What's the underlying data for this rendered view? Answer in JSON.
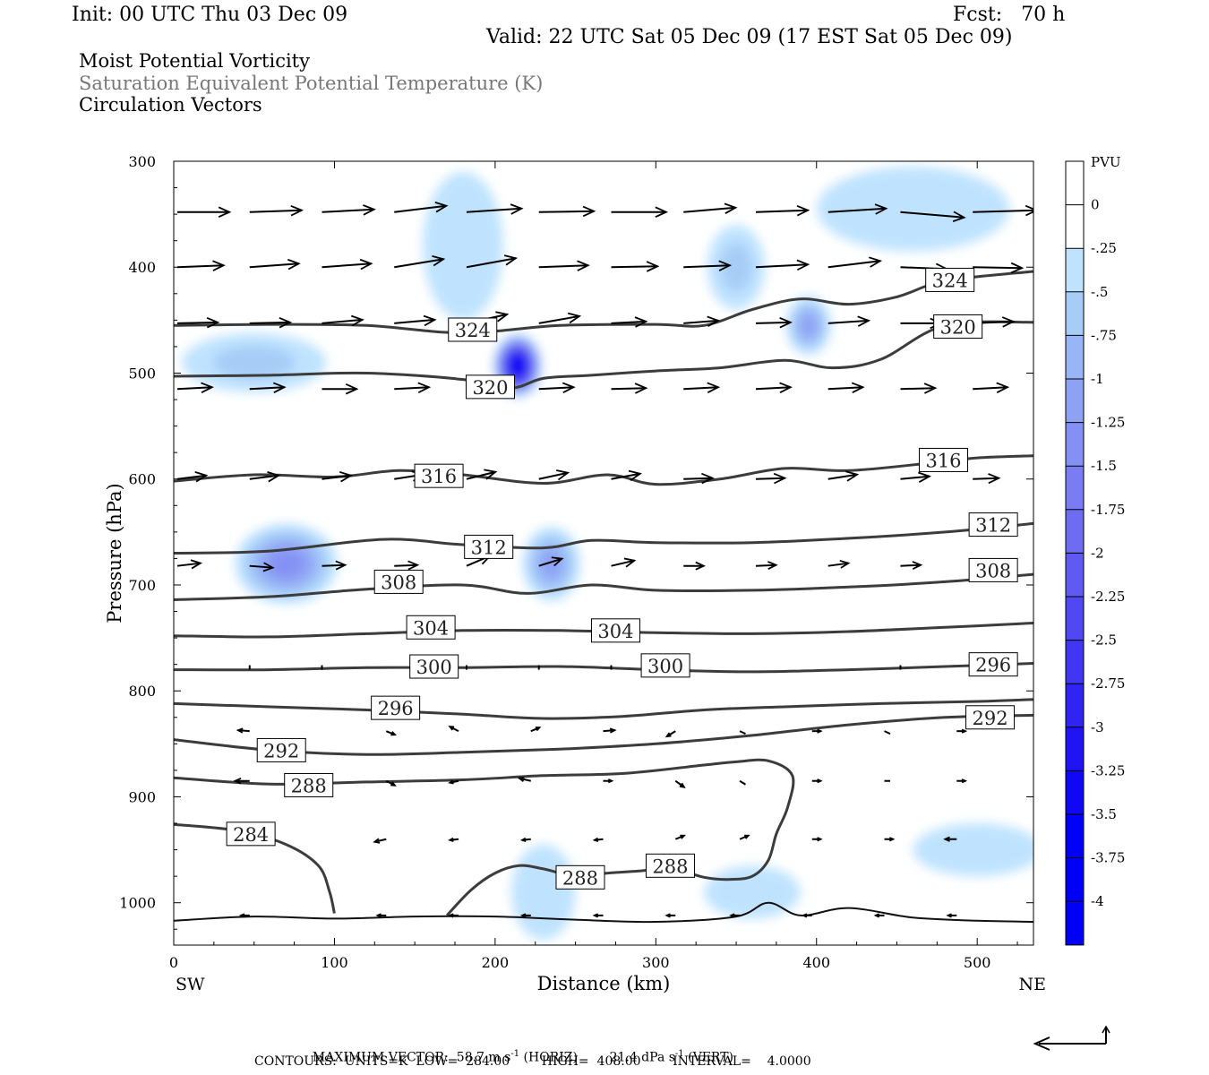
{
  "header": {
    "init": "Init: 00 UTC Thu 03 Dec 09",
    "fcst": "Fcst:   70 h",
    "valid": "Valid: 22 UTC Sat 05 Dec 09 (17 EST Sat 05 Dec 09)"
  },
  "titles": {
    "line1": "Moist Potential Vorticity",
    "line2": "Saturation Equivalent Potential Temperature (K)",
    "line3": "Circulation Vectors"
  },
  "colors": {
    "title2": "#777777",
    "contour": "#3c3c3c",
    "shade": [
      "#ffffff",
      "#ffffff",
      "#bfe3ff",
      "#a7cdf7",
      "#98b6f6",
      "#8ea2f4",
      "#8590f4",
      "#7a7cf3",
      "#6e6cf2",
      "#605af2",
      "#5148f2",
      "#4136f2",
      "#3024f3",
      "#2014f4",
      "#1008f5",
      "#0000f6",
      "#0000f8"
    ]
  },
  "footer": {
    "max_vector_label": "MAXIMUM VECTOR:",
    "horiz_value": "58.7 m s",
    "horiz_suffix": " (HORIZ)",
    "vert_value": "21.4 dPa s",
    "vert_suffix": " (VERT)",
    "exponent": "-1",
    "contours": "CONTOURS:  UNITS=K  LOW=  284.00        HIGH=  408.00        INTERVAL=    4.0000"
  },
  "chart_data": {
    "type": "contour",
    "xlabel": "Distance (km)",
    "ylabel": "Pressure (hPa)",
    "xlim": [
      0,
      535
    ],
    "ylim": [
      1040,
      300
    ],
    "xticks": [
      0,
      100,
      200,
      300,
      400,
      500
    ],
    "yticks": [
      300,
      400,
      500,
      600,
      700,
      800,
      900,
      1000
    ],
    "x_end_labels": {
      "left": "SW",
      "right": "NE"
    },
    "colorbar": {
      "label": "PVU",
      "ticks": [
        "0",
        "-.25",
        "-.5",
        "-.75",
        "-1",
        "-1.25",
        "-1.5",
        "-1.75",
        "-2",
        "-2.25",
        "-2.5",
        "-2.75",
        "-3",
        "-3.25",
        "-3.5",
        "-3.75",
        "-4"
      ]
    },
    "contour_lines": [
      {
        "value": 284,
        "x": [
          0,
          40,
          70,
          90,
          97,
          100
        ],
        "p": [
          926,
          932,
          945,
          965,
          990,
          1010
        ]
      },
      {
        "value": 288,
        "x": [
          0,
          60,
          120,
          180,
          230,
          280,
          330,
          350,
          370,
          385,
          382,
          375,
          370,
          360,
          345,
          330,
          310,
          290,
          270,
          250,
          230,
          215,
          200,
          185,
          170
        ],
        "p": [
          882,
          888,
          886,
          884,
          880,
          878,
          870,
          867,
          866,
          880,
          910,
          935,
          960,
          975,
          978,
          976,
          968,
          970,
          972,
          975,
          968,
          965,
          972,
          988,
          1012
        ]
      },
      {
        "value": 292,
        "x": [
          0,
          60,
          120,
          180,
          240,
          300,
          360,
          420,
          480,
          535
        ],
        "p": [
          846,
          856,
          860,
          858,
          855,
          850,
          842,
          832,
          825,
          823
        ]
      },
      {
        "value": 296,
        "x": [
          0,
          60,
          120,
          180,
          230,
          280,
          330,
          380,
          440,
          500,
          535
        ],
        "p": [
          812,
          815,
          818,
          822,
          826,
          824,
          818,
          815,
          812,
          810,
          808
        ]
      },
      {
        "value": 300,
        "x": [
          0,
          60,
          120,
          180,
          240,
          300,
          360,
          420,
          480,
          535
        ],
        "p": [
          780,
          780,
          778,
          778,
          777,
          780,
          782,
          780,
          777,
          774
        ]
      },
      {
        "value": 304,
        "x": [
          0,
          60,
          120,
          180,
          240,
          300,
          360,
          420,
          480,
          535
        ],
        "p": [
          748,
          749,
          746,
          743,
          743,
          745,
          746,
          744,
          740,
          736
        ]
      },
      {
        "value": 308,
        "x": [
          0,
          60,
          120,
          180,
          220,
          260,
          300,
          360,
          420,
          480,
          535
        ],
        "p": [
          714,
          711,
          704,
          700,
          708,
          700,
          705,
          705,
          702,
          697,
          690
        ]
      },
      {
        "value": 312,
        "x": [
          0,
          60,
          130,
          180,
          230,
          260,
          300,
          360,
          420,
          480,
          535
        ],
        "p": [
          670,
          668,
          657,
          662,
          665,
          658,
          660,
          660,
          656,
          650,
          642
        ]
      },
      {
        "value": 316,
        "x": [
          0,
          50,
          100,
          140,
          180,
          230,
          270,
          300,
          340,
          380,
          420,
          470,
          500,
          535
        ],
        "p": [
          602,
          596,
          598,
          592,
          596,
          604,
          596,
          605,
          600,
          590,
          592,
          585,
          580,
          578
        ]
      },
      {
        "value": 320,
        "x": [
          0,
          60,
          120,
          180,
          210,
          230,
          260,
          300,
          340,
          380,
          410,
          440,
          480,
          535
        ],
        "p": [
          503,
          502,
          500,
          506,
          514,
          505,
          502,
          498,
          495,
          488,
          495,
          487,
          455,
          452
        ]
      },
      {
        "value": 324,
        "x": [
          0,
          60,
          120,
          180,
          240,
          300,
          330,
          360,
          390,
          420,
          450,
          480,
          535
        ],
        "p": [
          455,
          454,
          455,
          462,
          455,
          454,
          455,
          440,
          430,
          435,
          428,
          413,
          404
        ]
      }
    ],
    "contour_labels": [
      {
        "text": "324",
        "x": 186,
        "p": 459
      },
      {
        "text": "320",
        "x": 197,
        "p": 513
      },
      {
        "text": "316",
        "x": 165,
        "p": 597
      },
      {
        "text": "312",
        "x": 196,
        "p": 664
      },
      {
        "text": "308",
        "x": 140,
        "p": 697
      },
      {
        "text": "304",
        "x": 160,
        "p": 740
      },
      {
        "text": "304",
        "x": 275,
        "p": 743
      },
      {
        "text": "300",
        "x": 162,
        "p": 777
      },
      {
        "text": "300",
        "x": 306,
        "p": 776
      },
      {
        "text": "296",
        "x": 138,
        "p": 816
      },
      {
        "text": "292",
        "x": 67,
        "p": 856
      },
      {
        "text": "288",
        "x": 84,
        "p": 889
      },
      {
        "text": "284",
        "x": 48,
        "p": 935
      },
      {
        "text": "288",
        "x": 253,
        "p": 976
      },
      {
        "text": "288",
        "x": 309,
        "p": 965
      },
      {
        "text": "324",
        "x": 483,
        "p": 412
      },
      {
        "text": "320",
        "x": 488,
        "p": 456
      },
      {
        "text": "316",
        "x": 479,
        "p": 582
      },
      {
        "text": "312",
        "x": 510,
        "p": 643
      },
      {
        "text": "308",
        "x": 510,
        "p": 686
      },
      {
        "text": "296",
        "x": 510,
        "p": 775
      },
      {
        "text": "292",
        "x": 508,
        "p": 825
      }
    ],
    "pv_regions": [
      {
        "x": 214,
        "p": 493,
        "rx": 15,
        "rp": 30,
        "level": 16
      },
      {
        "x": 50,
        "p": 490,
        "rx": 45,
        "rp": 28,
        "level": 3
      },
      {
        "x": 70,
        "p": 680,
        "rx": 32,
        "rp": 38,
        "level": 6
      },
      {
        "x": 235,
        "p": 680,
        "rx": 18,
        "rp": 35,
        "level": 5
      },
      {
        "x": 395,
        "p": 455,
        "rx": 14,
        "rp": 28,
        "level": 5
      },
      {
        "x": 350,
        "p": 400,
        "rx": 18,
        "rp": 40,
        "level": 3
      },
      {
        "x": 460,
        "p": 345,
        "rx": 60,
        "rp": 40,
        "level": 2
      },
      {
        "x": 500,
        "p": 950,
        "rx": 40,
        "rp": 25,
        "level": 2
      },
      {
        "x": 230,
        "p": 990,
        "rx": 20,
        "rp": 45,
        "level": 2
      },
      {
        "x": 360,
        "p": 990,
        "rx": 30,
        "rp": 25,
        "level": 2
      },
      {
        "x": 180,
        "p": 380,
        "rx": 25,
        "rp": 70,
        "level": 2
      }
    ],
    "vectors": [
      {
        "p": 348,
        "x": [
          0,
          45,
          90,
          135,
          180,
          225,
          270,
          315,
          360,
          405,
          450,
          495
        ],
        "u": [
          36,
          36,
          36,
          36,
          38,
          38,
          38,
          36,
          36,
          40,
          44,
          44
        ],
        "w": [
          0,
          -2,
          -3,
          -7,
          -4,
          -1,
          0,
          -5,
          -2,
          -4,
          6,
          -2
        ]
      },
      {
        "p": 400,
        "x": [
          0,
          45,
          90,
          135,
          180,
          225,
          270,
          315,
          360,
          405,
          450,
          495
        ],
        "u": [
          32,
          34,
          34,
          34,
          34,
          34,
          32,
          32,
          36,
          36,
          32,
          34
        ],
        "w": [
          -2,
          -4,
          -4,
          -9,
          -10,
          -2,
          -1,
          -2,
          -3,
          -7,
          2,
          1
        ]
      },
      {
        "p": 453,
        "x": [
          0,
          45,
          90,
          135,
          180,
          225,
          270,
          315,
          360,
          405,
          450,
          495
        ],
        "u": [
          28,
          28,
          28,
          28,
          28,
          28,
          24,
          24,
          24,
          28,
          28,
          28
        ],
        "w": [
          -1,
          -1,
          -4,
          -4,
          -10,
          -8,
          -2,
          -3,
          -1,
          -3,
          0,
          -2
        ]
      },
      {
        "p": 515,
        "x": [
          0,
          45,
          90,
          135,
          180,
          225,
          270,
          315,
          360,
          405,
          450,
          495
        ],
        "u": [
          24,
          24,
          24,
          24,
          24,
          24,
          24,
          24,
          24,
          24,
          24,
          24
        ],
        "w": [
          -2,
          -2,
          0,
          -2,
          -11,
          -2,
          -1,
          -2,
          -2,
          -2,
          -1,
          -2
        ]
      },
      {
        "p": 600,
        "x": [
          0,
          45,
          90,
          135,
          180,
          225,
          270,
          315,
          360,
          405,
          450,
          495
        ],
        "u": [
          20,
          20,
          20,
          20,
          20,
          20,
          20,
          20,
          20,
          20,
          20,
          18
        ],
        "w": [
          -4,
          -4,
          -4,
          -5,
          -8,
          -7,
          -6,
          -1,
          -1,
          -5,
          -3,
          -1
        ]
      },
      {
        "p": 682,
        "x": [
          0,
          45,
          90,
          135,
          180,
          225,
          270,
          315,
          360,
          405,
          450,
          495
        ],
        "u": [
          16,
          16,
          16,
          16,
          16,
          16,
          16,
          14,
          14,
          14,
          14,
          14
        ],
        "w": [
          -3,
          2,
          -1,
          -1,
          -11,
          -8,
          -6,
          0,
          -1,
          -3,
          -1,
          -1
        ]
      },
      {
        "p": 780,
        "x": [
          45,
          90,
          180,
          225,
          270,
          315,
          450
        ],
        "u": [
          0,
          0,
          0,
          0,
          0,
          0,
          0
        ],
        "w": [
          -5,
          -5,
          -5,
          -5,
          -5,
          -5,
          -5
        ]
      },
      {
        "p": 838,
        "x": [
          45,
          130,
          175,
          220,
          265,
          310,
          350,
          395,
          440,
          485
        ],
        "u": [
          -8,
          6,
          -6,
          6,
          8,
          -6,
          4,
          6,
          4,
          6
        ],
        "w": [
          -1,
          4,
          -5,
          -4,
          -1,
          6,
          3,
          0,
          3,
          0
        ]
      },
      {
        "p": 885,
        "x": [
          45,
          130,
          175,
          220,
          265,
          310,
          350,
          395,
          440,
          485
        ],
        "u": [
          -10,
          6,
          -6,
          -8,
          6,
          6,
          4,
          6,
          4,
          6
        ],
        "w": [
          0,
          5,
          2,
          -3,
          0,
          7,
          4,
          0,
          0,
          0
        ]
      },
      {
        "p": 940,
        "x": [
          45,
          130,
          175,
          220,
          265,
          310,
          350,
          395,
          440,
          485
        ],
        "u": [
          -8,
          -8,
          -6,
          -6,
          -6,
          6,
          6,
          6,
          6,
          -8
        ],
        "w": [
          0,
          3,
          1,
          1,
          1,
          -4,
          -4,
          0,
          0,
          0
        ]
      },
      {
        "p": 1012,
        "x": [
          45,
          130,
          175,
          220,
          265,
          310,
          350,
          395,
          440,
          485
        ],
        "u": [
          -6,
          -6,
          -6,
          -6,
          -6,
          -6,
          -6,
          -6,
          -6,
          -6
        ],
        "w": [
          0,
          0,
          0,
          0,
          0,
          0,
          0,
          0,
          0,
          0
        ]
      }
    ],
    "terrain": {
      "x": [
        0,
        50,
        100,
        150,
        200,
        250,
        300,
        350,
        370,
        390,
        420,
        460,
        500,
        535
      ],
      "p": [
        1017,
        1013,
        1015,
        1013,
        1013,
        1016,
        1018,
        1013,
        1000,
        1012,
        1005,
        1014,
        1017,
        1018
      ]
    },
    "reference_vector_length_px": 65
  }
}
